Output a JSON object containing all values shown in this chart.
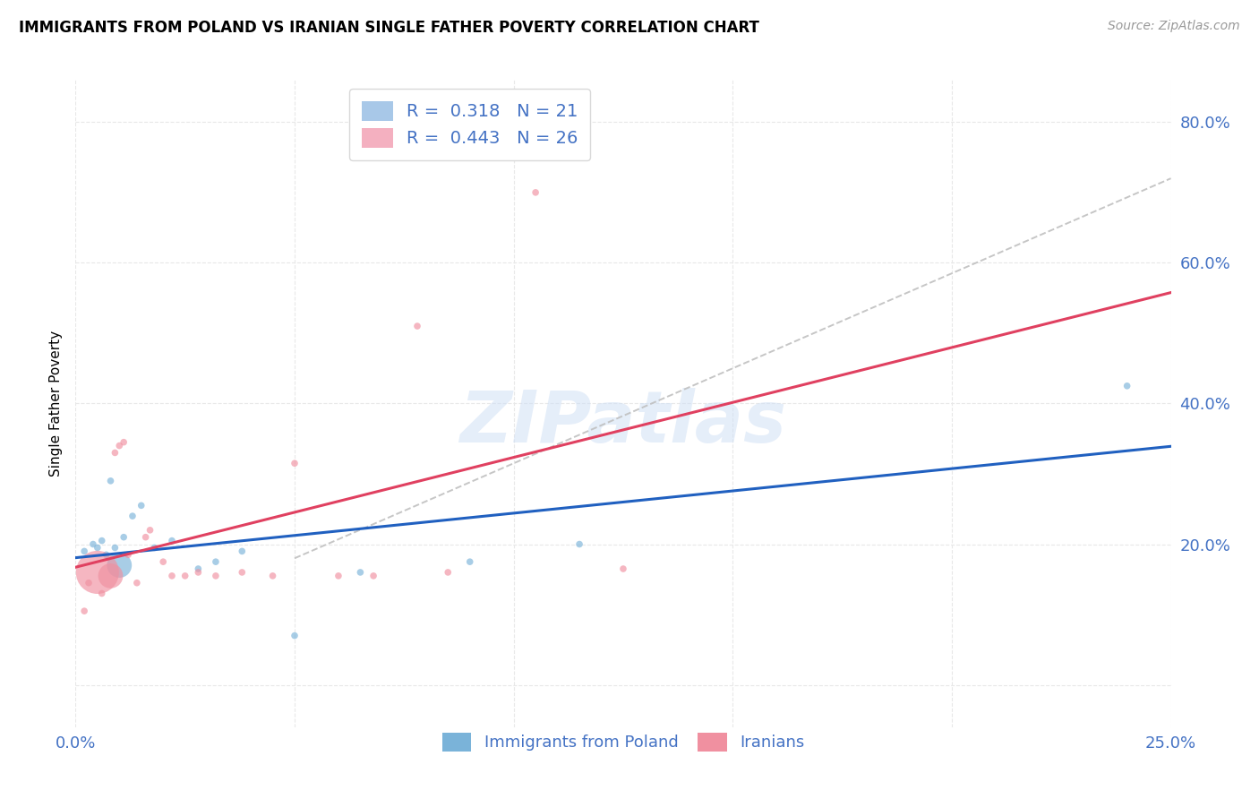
{
  "title": "IMMIGRANTS FROM POLAND VS IRANIAN SINGLE FATHER POVERTY CORRELATION CHART",
  "source": "Source: ZipAtlas.com",
  "ylabel": "Single Father Poverty",
  "xlim": [
    0.0,
    0.25
  ],
  "ylim": [
    -0.06,
    0.86
  ],
  "legend_bottom": [
    "Immigrants from Poland",
    "Iranians"
  ],
  "poland_color": "#7ab3d9",
  "iran_color": "#f090a0",
  "poland_line_color": "#2060c0",
  "iran_line_color": "#e04060",
  "watermark_color": "#d0e0f5",
  "watermark": "ZIPatlas",
  "poland_R": 0.318,
  "poland_N": 21,
  "iran_R": 0.443,
  "iran_N": 26,
  "poland_scatter_x": [
    0.002,
    0.004,
    0.005,
    0.006,
    0.007,
    0.008,
    0.009,
    0.01,
    0.011,
    0.013,
    0.015,
    0.018,
    0.022,
    0.028,
    0.032,
    0.038,
    0.05,
    0.065,
    0.09,
    0.115,
    0.24
  ],
  "poland_scatter_y": [
    0.19,
    0.2,
    0.195,
    0.205,
    0.185,
    0.29,
    0.195,
    0.17,
    0.21,
    0.24,
    0.255,
    0.195,
    0.205,
    0.165,
    0.175,
    0.19,
    0.07,
    0.16,
    0.175,
    0.2,
    0.425
  ],
  "poland_scatter_sizes": [
    30,
    30,
    30,
    30,
    30,
    30,
    30,
    400,
    30,
    30,
    30,
    30,
    30,
    30,
    30,
    30,
    30,
    30,
    30,
    30,
    30
  ],
  "iran_scatter_x": [
    0.002,
    0.003,
    0.005,
    0.006,
    0.008,
    0.009,
    0.01,
    0.011,
    0.012,
    0.014,
    0.016,
    0.017,
    0.02,
    0.022,
    0.025,
    0.028,
    0.032,
    0.038,
    0.045,
    0.05,
    0.06,
    0.068,
    0.078,
    0.085,
    0.105,
    0.125
  ],
  "iran_scatter_y": [
    0.105,
    0.145,
    0.16,
    0.13,
    0.155,
    0.33,
    0.34,
    0.345,
    0.185,
    0.145,
    0.21,
    0.22,
    0.175,
    0.155,
    0.155,
    0.16,
    0.155,
    0.16,
    0.155,
    0.315,
    0.155,
    0.155,
    0.51,
    0.16,
    0.7,
    0.165
  ],
  "iran_scatter_sizes": [
    30,
    30,
    1200,
    30,
    400,
    30,
    30,
    30,
    30,
    30,
    30,
    30,
    30,
    30,
    30,
    30,
    30,
    30,
    30,
    30,
    30,
    30,
    30,
    30,
    30,
    30
  ],
  "ytick_vals": [
    0.0,
    0.2,
    0.4,
    0.6,
    0.8
  ],
  "ytick_labels": [
    "",
    "20.0%",
    "40.0%",
    "60.0%",
    "80.0%"
  ],
  "xtick_vals": [
    0.0,
    0.05,
    0.1,
    0.15,
    0.2,
    0.25
  ],
  "xtick_labels": [
    "0.0%",
    "",
    "",
    "",
    "",
    "25.0%"
  ],
  "tick_color": "#4472c4",
  "grid_color": "#e8e8e8",
  "legend_patch_blue": "#a8c8e8",
  "legend_patch_pink": "#f4b0c0",
  "legend_text_color": "#4472c4",
  "legend_number_color": "#4472c4",
  "source_color": "#999999"
}
